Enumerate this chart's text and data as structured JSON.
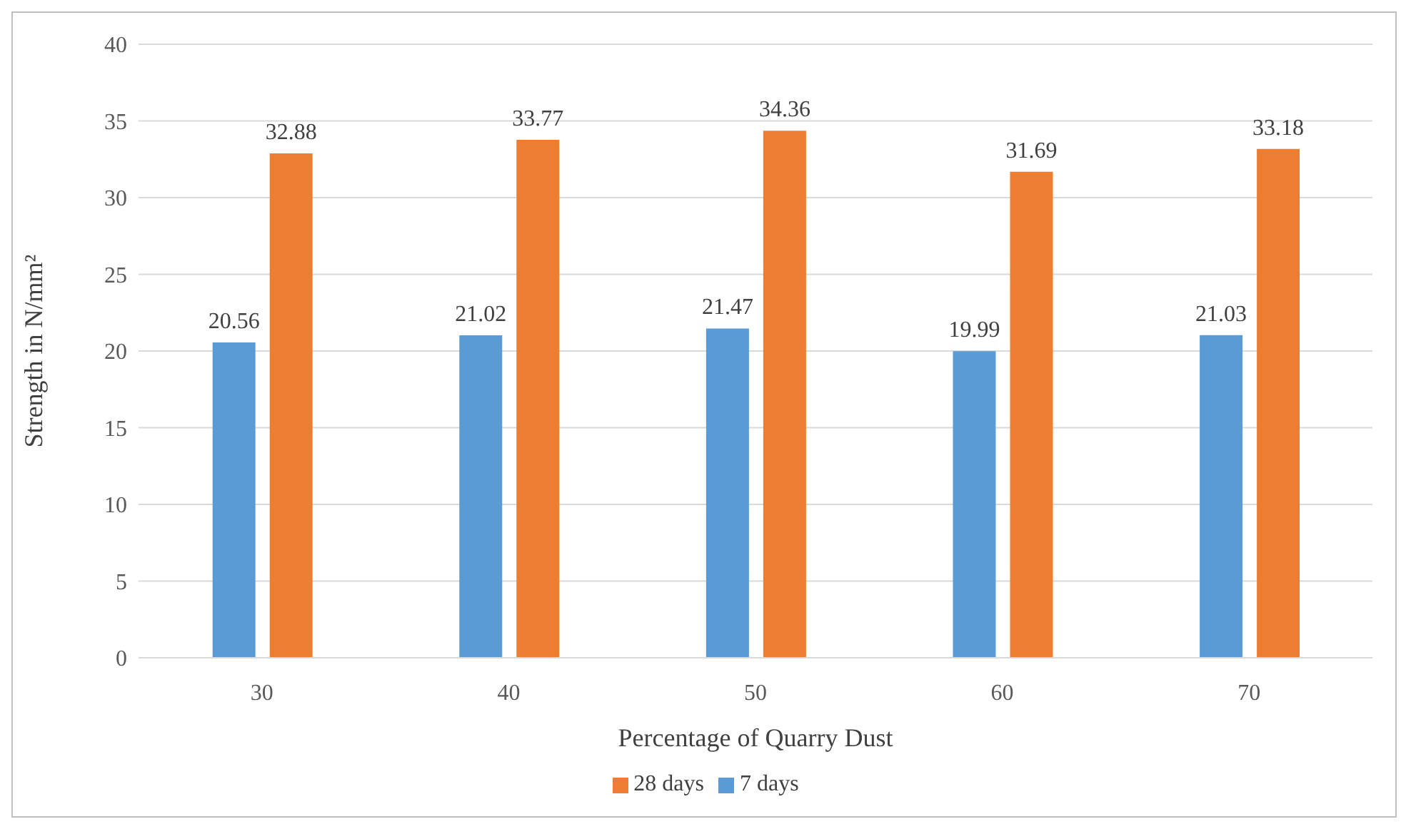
{
  "chart_data": {
    "type": "bar",
    "xlabel": "Percentage of Quarry Dust",
    "ylabel": "Strength in N/mm²",
    "categories": [
      "30",
      "40",
      "50",
      "60",
      "70"
    ],
    "series": [
      {
        "name": "7 days",
        "color": "#5b9bd5",
        "values": [
          20.56,
          21.02,
          21.47,
          19.99,
          21.03
        ]
      },
      {
        "name": "28 days",
        "color": "#ed7d31",
        "values": [
          32.88,
          33.77,
          34.36,
          31.69,
          33.18
        ]
      }
    ],
    "ylim": [
      0,
      40
    ],
    "yticks": [
      0,
      5,
      10,
      15,
      20,
      25,
      30,
      35,
      40
    ],
    "grid": "y",
    "legend": "bottom",
    "data_labels": true
  }
}
